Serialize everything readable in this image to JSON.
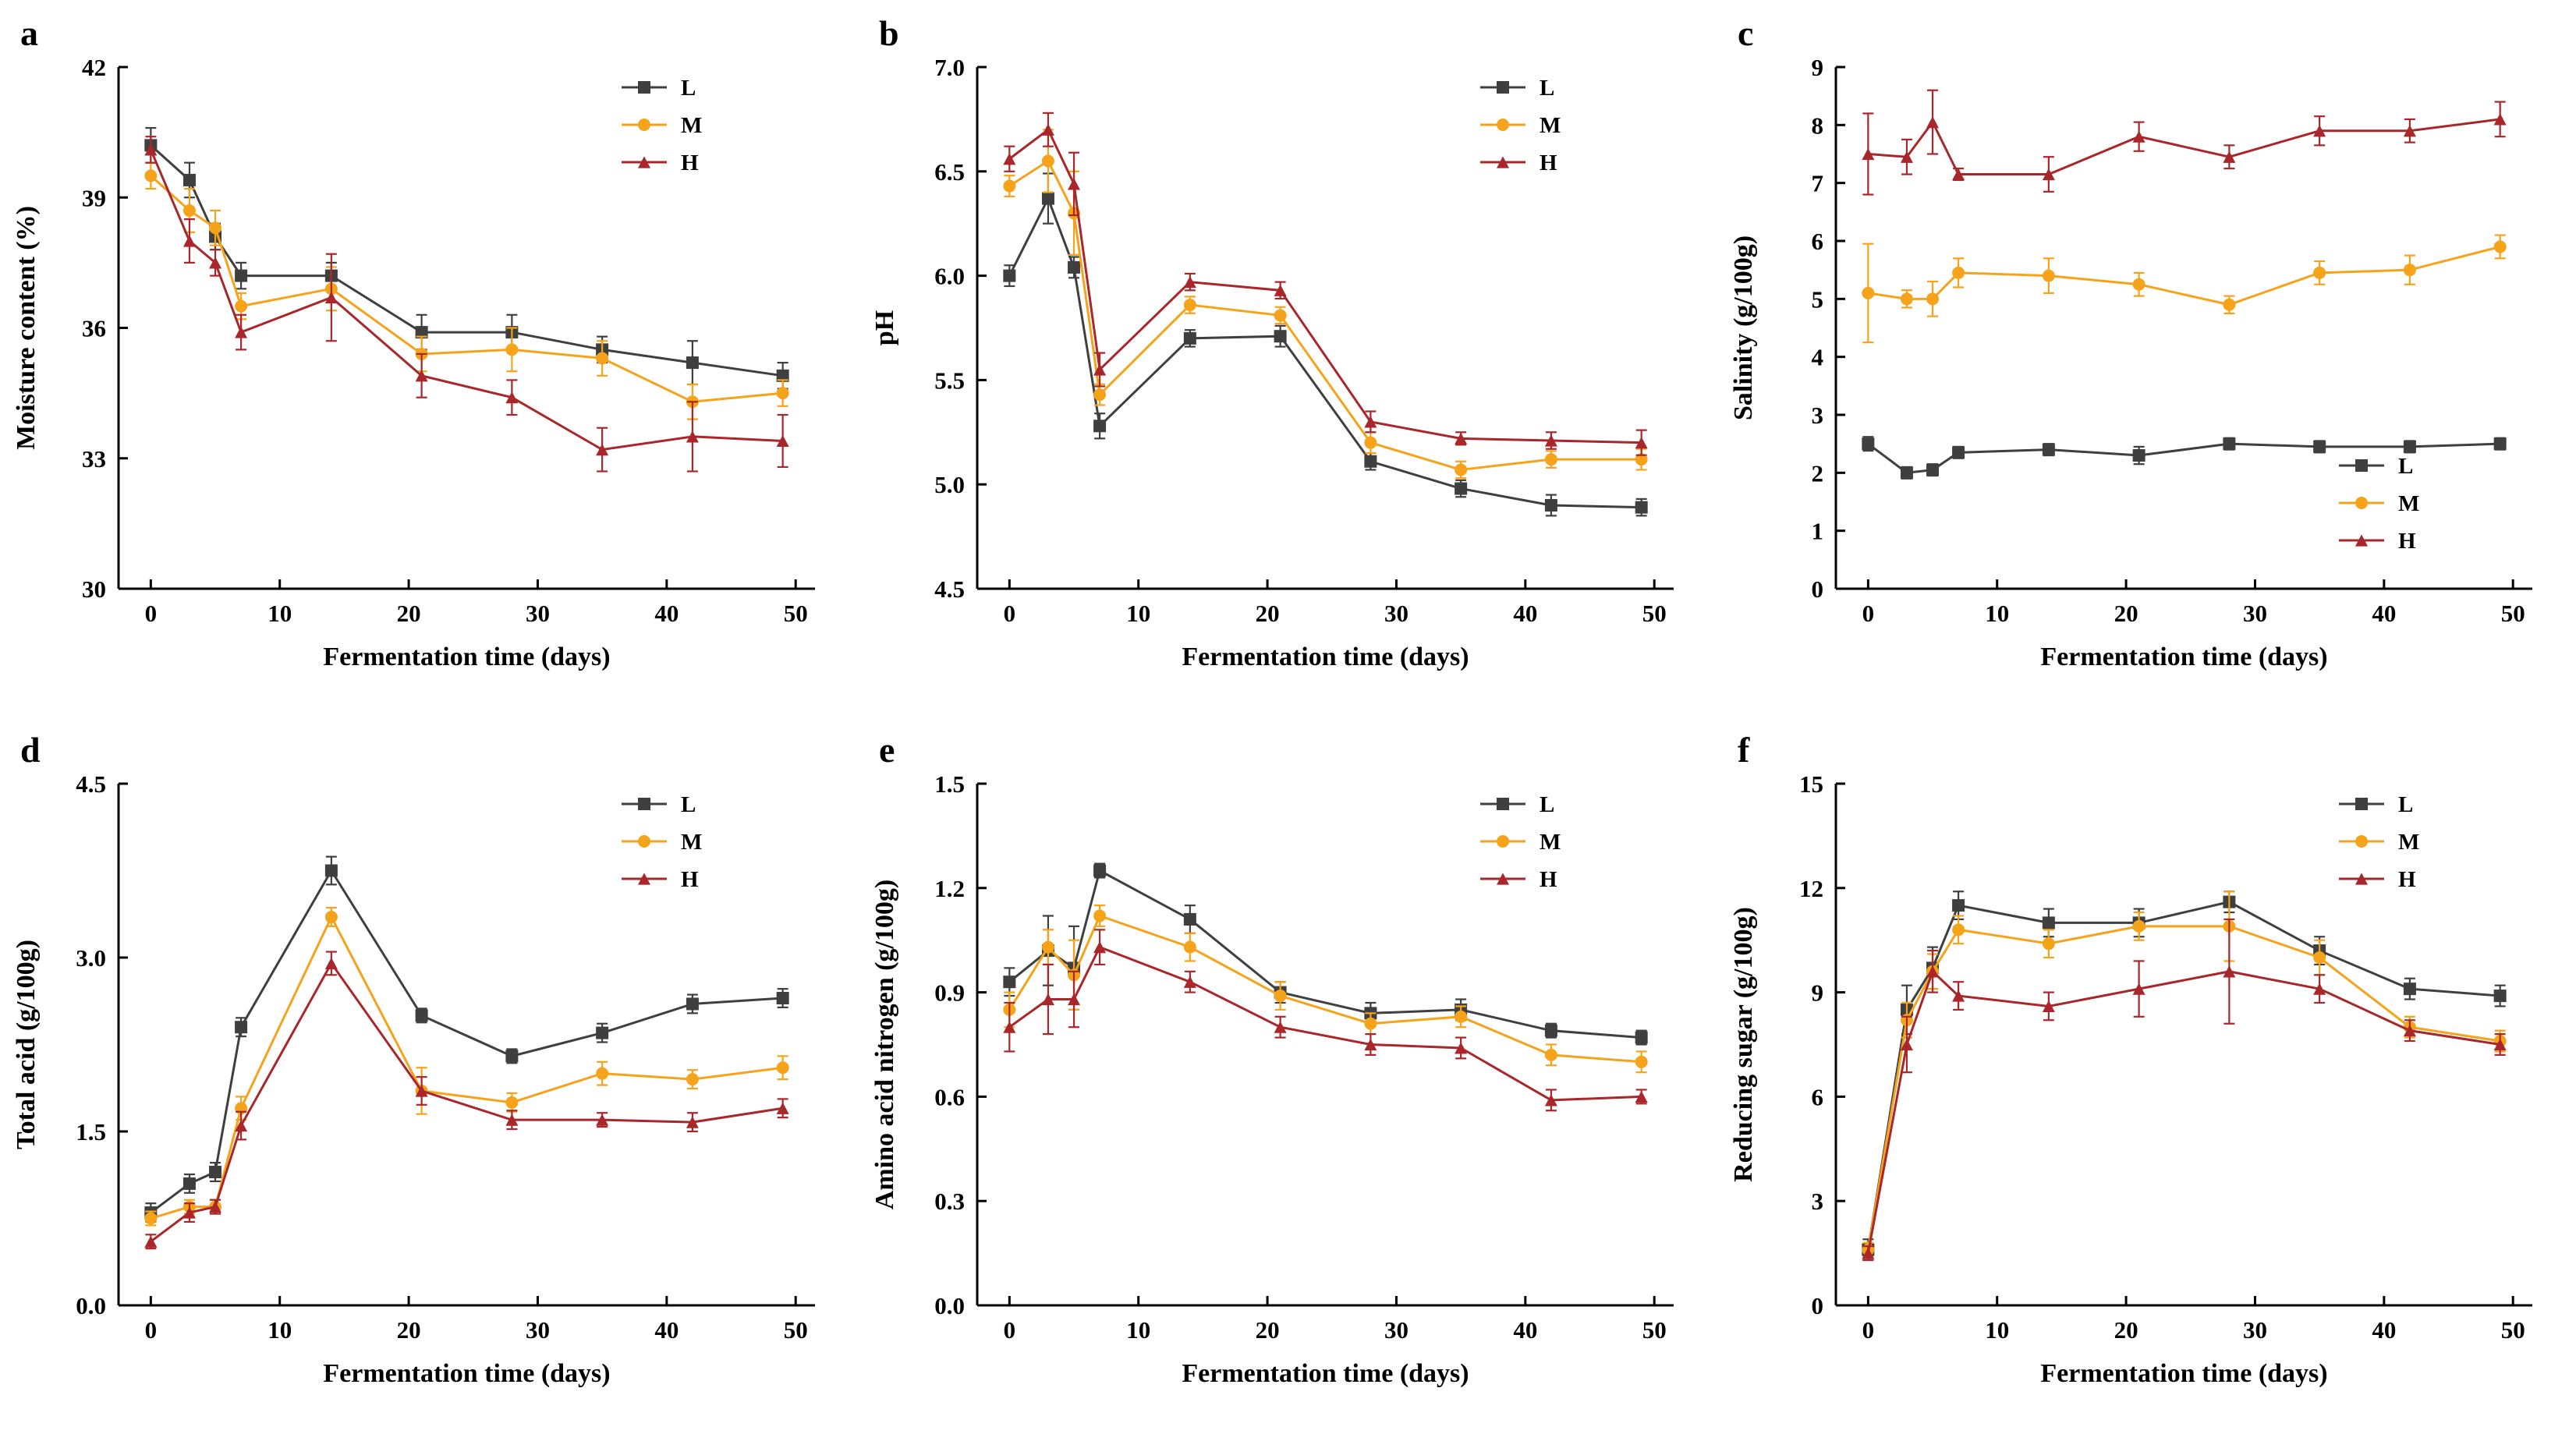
{
  "figure": {
    "background": "#ffffff",
    "axis_color": "#000000"
  },
  "series_styles": {
    "L": {
      "label": "L",
      "color": "#3f3f3f",
      "marker": "square"
    },
    "M": {
      "label": "M",
      "color": "#f6a31c",
      "marker": "circle"
    },
    "H": {
      "label": "H",
      "color": "#a9262b",
      "marker": "triangle"
    }
  },
  "chart_data": [
    {
      "id": "a",
      "panel_label": "a",
      "type": "line",
      "xlabel": "Fermentation time (days)",
      "ylabel": "Moisture content (%)",
      "x": [
        0,
        3,
        5,
        7,
        14,
        21,
        28,
        35,
        42,
        49
      ],
      "xlim": [
        -2.5,
        51.5
      ],
      "xticks": [
        0,
        10,
        20,
        30,
        40,
        50
      ],
      "xtick_labels": [
        "0",
        "10",
        "20",
        "30",
        "40",
        "50"
      ],
      "ylim": [
        30,
        42
      ],
      "yticks": [
        30,
        33,
        36,
        39,
        42
      ],
      "ytick_labels": [
        "30",
        "33",
        "36",
        "39",
        "42"
      ],
      "grid": false,
      "legend_position": "top-right",
      "series": [
        {
          "name": "L",
          "values": [
            40.2,
            39.4,
            38.1,
            37.2,
            37.2,
            35.9,
            35.9,
            35.5,
            35.2,
            34.9
          ],
          "errors": [
            0.4,
            0.4,
            0.3,
            0.3,
            0.3,
            0.4,
            0.4,
            0.3,
            0.5,
            0.3
          ]
        },
        {
          "name": "M",
          "values": [
            39.5,
            38.7,
            38.3,
            36.5,
            36.9,
            35.4,
            35.5,
            35.3,
            34.3,
            34.5
          ],
          "errors": [
            0.3,
            0.5,
            0.4,
            0.3,
            0.5,
            0.4,
            0.5,
            0.4,
            0.4,
            0.3
          ]
        },
        {
          "name": "H",
          "values": [
            40.1,
            38.0,
            37.5,
            35.9,
            36.7,
            34.9,
            34.4,
            33.2,
            33.5,
            33.4
          ],
          "errors": [
            0.3,
            0.5,
            0.3,
            0.4,
            1.0,
            0.5,
            0.4,
            0.5,
            0.8,
            0.6
          ]
        }
      ]
    },
    {
      "id": "b",
      "panel_label": "b",
      "type": "line",
      "xlabel": "Fermentation time (days)",
      "ylabel": "pH",
      "x": [
        0,
        3,
        5,
        7,
        14,
        21,
        28,
        35,
        42,
        49
      ],
      "xlim": [
        -2.5,
        51.5
      ],
      "xticks": [
        0,
        10,
        20,
        30,
        40,
        50
      ],
      "xtick_labels": [
        "0",
        "10",
        "20",
        "30",
        "40",
        "50"
      ],
      "ylim": [
        4.5,
        7.0
      ],
      "yticks": [
        4.5,
        5.0,
        5.5,
        6.0,
        6.5,
        7.0
      ],
      "ytick_labels": [
        "4.5",
        "5.0",
        "5.5",
        "6.0",
        "6.5",
        "7.0"
      ],
      "grid": false,
      "legend_position": "top-right",
      "series": [
        {
          "name": "L",
          "values": [
            6.0,
            6.37,
            6.04,
            5.28,
            5.7,
            5.71,
            5.11,
            4.98,
            4.9,
            4.89
          ],
          "errors": [
            0.05,
            0.12,
            0.05,
            0.06,
            0.04,
            0.05,
            0.04,
            0.04,
            0.05,
            0.04
          ]
        },
        {
          "name": "M",
          "values": [
            6.43,
            6.55,
            6.3,
            5.43,
            5.86,
            5.81,
            5.2,
            5.07,
            5.12,
            5.12
          ],
          "errors": [
            0.05,
            0.15,
            0.2,
            0.05,
            0.04,
            0.04,
            0.05,
            0.04,
            0.04,
            0.05
          ]
        },
        {
          "name": "H",
          "values": [
            6.56,
            6.7,
            6.44,
            5.55,
            5.97,
            5.93,
            5.3,
            5.22,
            5.21,
            5.2
          ],
          "errors": [
            0.06,
            0.08,
            0.15,
            0.08,
            0.04,
            0.04,
            0.05,
            0.03,
            0.04,
            0.06
          ]
        }
      ]
    },
    {
      "id": "c",
      "panel_label": "c",
      "type": "line",
      "xlabel": "Fermentation time (days)",
      "ylabel": "Salinity (g/100g)",
      "x": [
        0,
        3,
        5,
        7,
        14,
        21,
        28,
        35,
        42,
        49
      ],
      "xlim": [
        -2.5,
        51.5
      ],
      "xticks": [
        0,
        10,
        20,
        30,
        40,
        50
      ],
      "xtick_labels": [
        "0",
        "10",
        "20",
        "30",
        "40",
        "50"
      ],
      "ylim": [
        0,
        9
      ],
      "yticks": [
        0,
        1,
        2,
        3,
        4,
        5,
        6,
        7,
        8,
        9
      ],
      "ytick_labels": [
        "0",
        "1",
        "2",
        "3",
        "4",
        "5",
        "6",
        "7",
        "8",
        "9"
      ],
      "grid": false,
      "legend_position": "bottom-right",
      "series": [
        {
          "name": "L",
          "values": [
            2.5,
            2.0,
            2.05,
            2.35,
            2.4,
            2.3,
            2.5,
            2.45,
            2.45,
            2.5
          ],
          "errors": [
            0.12,
            0.1,
            0.1,
            0.1,
            0.1,
            0.15,
            0.1,
            0.1,
            0.1,
            0.1
          ]
        },
        {
          "name": "M",
          "values": [
            5.1,
            5.0,
            5.0,
            5.45,
            5.4,
            5.25,
            4.9,
            5.45,
            5.5,
            5.9
          ],
          "errors": [
            0.85,
            0.15,
            0.3,
            0.25,
            0.3,
            0.2,
            0.15,
            0.2,
            0.25,
            0.2
          ]
        },
        {
          "name": "H",
          "values": [
            7.5,
            7.45,
            8.05,
            7.15,
            7.15,
            7.8,
            7.45,
            7.9,
            7.9,
            8.1
          ],
          "errors": [
            0.7,
            0.3,
            0.55,
            0.1,
            0.3,
            0.25,
            0.2,
            0.25,
            0.2,
            0.3
          ]
        }
      ]
    },
    {
      "id": "d",
      "panel_label": "d",
      "type": "line",
      "xlabel": "Fermentation time (days)",
      "ylabel": "Total acid (g/100g)",
      "x": [
        0,
        3,
        5,
        7,
        14,
        21,
        28,
        35,
        42,
        49
      ],
      "xlim": [
        -2.5,
        51.5
      ],
      "xticks": [
        0,
        10,
        20,
        30,
        40,
        50
      ],
      "xtick_labels": [
        "0",
        "10",
        "20",
        "30",
        "40",
        "50"
      ],
      "ylim": [
        0,
        4.5
      ],
      "yticks": [
        0,
        1.5,
        3.0,
        4.5
      ],
      "ytick_labels": [
        "0.0",
        "1.5",
        "3.0",
        "4.5"
      ],
      "grid": false,
      "legend_position": "top-right",
      "series": [
        {
          "name": "L",
          "values": [
            0.8,
            1.05,
            1.15,
            2.4,
            3.75,
            2.5,
            2.15,
            2.35,
            2.6,
            2.65
          ],
          "errors": [
            0.08,
            0.08,
            0.08,
            0.08,
            0.12,
            0.06,
            0.06,
            0.08,
            0.08,
            0.08
          ]
        },
        {
          "name": "M",
          "values": [
            0.75,
            0.85,
            0.85,
            1.7,
            3.35,
            1.85,
            1.75,
            2.0,
            1.95,
            2.05
          ],
          "errors": [
            0.06,
            0.06,
            0.06,
            0.1,
            0.08,
            0.2,
            0.08,
            0.1,
            0.08,
            0.1
          ]
        },
        {
          "name": "H",
          "values": [
            0.55,
            0.8,
            0.85,
            1.55,
            2.95,
            1.85,
            1.6,
            1.6,
            1.58,
            1.7
          ],
          "errors": [
            0.06,
            0.08,
            0.06,
            0.12,
            0.1,
            0.12,
            0.08,
            0.06,
            0.08,
            0.08
          ]
        }
      ]
    },
    {
      "id": "e",
      "panel_label": "e",
      "type": "line",
      "xlabel": "Fermentation time (days)",
      "ylabel": "Amino acid nitrogen (g/100g)",
      "x": [
        0,
        3,
        5,
        7,
        14,
        21,
        28,
        35,
        42,
        49
      ],
      "xlim": [
        -2.5,
        51.5
      ],
      "xticks": [
        0,
        10,
        20,
        30,
        40,
        50
      ],
      "xtick_labels": [
        "0",
        "10",
        "20",
        "30",
        "40",
        "50"
      ],
      "ylim": [
        0,
        1.5
      ],
      "yticks": [
        0,
        0.3,
        0.6,
        0.9,
        1.2,
        1.5
      ],
      "ytick_labels": [
        "0.0",
        "0.3",
        "0.6",
        "0.9",
        "1.2",
        "1.5"
      ],
      "grid": false,
      "legend_position": "top-right",
      "series": [
        {
          "name": "L",
          "values": [
            0.93,
            1.02,
            0.97,
            1.25,
            1.11,
            0.9,
            0.84,
            0.85,
            0.79,
            0.77
          ],
          "errors": [
            0.04,
            0.1,
            0.12,
            0.02,
            0.04,
            0.03,
            0.03,
            0.03,
            0.02,
            0.02
          ]
        },
        {
          "name": "M",
          "values": [
            0.85,
            1.03,
            0.95,
            1.12,
            1.03,
            0.89,
            0.81,
            0.83,
            0.72,
            0.7
          ],
          "errors": [
            0.05,
            0.05,
            0.1,
            0.03,
            0.04,
            0.04,
            0.03,
            0.03,
            0.03,
            0.03
          ]
        },
        {
          "name": "H",
          "values": [
            0.8,
            0.88,
            0.88,
            1.03,
            0.93,
            0.8,
            0.75,
            0.74,
            0.59,
            0.6
          ],
          "errors": [
            0.07,
            0.1,
            0.08,
            0.05,
            0.03,
            0.03,
            0.03,
            0.03,
            0.03,
            0.02
          ]
        }
      ]
    },
    {
      "id": "f",
      "panel_label": "f",
      "type": "line",
      "xlabel": "Fermentation time (days)",
      "ylabel": "Reducing sugar (g/100g)",
      "x": [
        0,
        3,
        5,
        7,
        14,
        21,
        28,
        35,
        42,
        49
      ],
      "xlim": [
        -2.5,
        51.5
      ],
      "xticks": [
        0,
        10,
        20,
        30,
        40,
        50
      ],
      "xtick_labels": [
        "0",
        "10",
        "20",
        "30",
        "40",
        "50"
      ],
      "ylim": [
        0,
        15
      ],
      "yticks": [
        0,
        3,
        6,
        9,
        12,
        15
      ],
      "ytick_labels": [
        "0",
        "3",
        "6",
        "9",
        "12",
        "15"
      ],
      "grid": false,
      "legend_position": "top-right",
      "series": [
        {
          "name": "L",
          "values": [
            1.6,
            8.5,
            9.7,
            11.5,
            11.0,
            11.0,
            11.6,
            10.2,
            9.1,
            8.9
          ],
          "errors": [
            0.3,
            0.7,
            0.6,
            0.4,
            0.4,
            0.4,
            0.3,
            0.4,
            0.3,
            0.3
          ]
        },
        {
          "name": "M",
          "values": [
            1.6,
            8.2,
            9.6,
            10.8,
            10.4,
            10.9,
            10.9,
            10.0,
            8.0,
            7.6
          ],
          "errors": [
            0.2,
            0.5,
            0.5,
            0.4,
            0.4,
            0.4,
            1.0,
            0.5,
            0.3,
            0.3
          ]
        },
        {
          "name": "H",
          "values": [
            1.5,
            7.5,
            9.6,
            8.9,
            8.6,
            9.1,
            9.6,
            9.1,
            7.9,
            7.5
          ],
          "errors": [
            0.2,
            0.8,
            0.6,
            0.4,
            0.4,
            0.8,
            1.5,
            0.4,
            0.3,
            0.3
          ]
        }
      ]
    }
  ]
}
